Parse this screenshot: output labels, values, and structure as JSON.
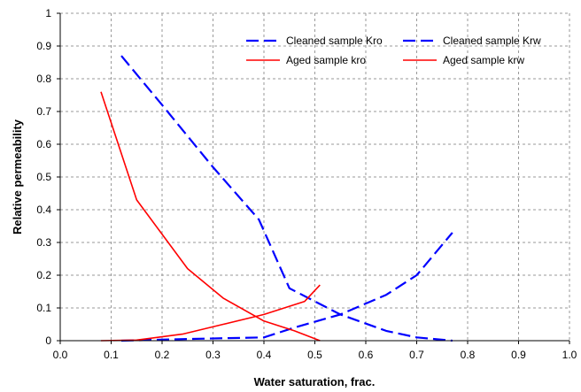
{
  "chart_data": {
    "type": "line",
    "xlabel": "Water saturation, frac.",
    "ylabel": "Relative permeability",
    "xlim": [
      0.0,
      1.0
    ],
    "ylim": [
      0,
      1
    ],
    "x_ticks": [
      "0.0",
      "0.1",
      "0.2",
      "0.3",
      "0.4",
      "0.5",
      "0.6",
      "0.7",
      "0.8",
      "0.9",
      "1.0"
    ],
    "y_ticks": [
      "0",
      "0.1",
      "0.2",
      "0.3",
      "0.4",
      "0.5",
      "0.6",
      "0.7",
      "0.8",
      "0.9",
      "1"
    ],
    "grid": true,
    "legend_position": "top-right",
    "series": [
      {
        "name": "Cleaned sample Kro",
        "color": "#0000ff",
        "dash": true,
        "x": [
          0.12,
          0.2,
          0.3,
          0.39,
          0.45,
          0.55,
          0.64,
          0.7,
          0.77
        ],
        "y": [
          0.87,
          0.72,
          0.53,
          0.37,
          0.16,
          0.08,
          0.03,
          0.01,
          0.0
        ]
      },
      {
        "name": "Cleaned sample Krw",
        "color": "#0000ff",
        "dash": true,
        "x": [
          0.12,
          0.25,
          0.4,
          0.46,
          0.55,
          0.64,
          0.7,
          0.77
        ],
        "y": [
          0.0,
          0.005,
          0.01,
          0.04,
          0.08,
          0.14,
          0.2,
          0.33
        ]
      },
      {
        "name": "Aged sample kro",
        "color": "#ff0000",
        "dash": false,
        "x": [
          0.08,
          0.15,
          0.25,
          0.32,
          0.4,
          0.46,
          0.51
        ],
        "y": [
          0.76,
          0.43,
          0.22,
          0.13,
          0.06,
          0.03,
          0.0
        ]
      },
      {
        "name": "Aged sample krw",
        "color": "#ff0000",
        "dash": false,
        "x": [
          0.08,
          0.15,
          0.24,
          0.32,
          0.4,
          0.48,
          0.51
        ],
        "y": [
          0.0,
          0.002,
          0.02,
          0.05,
          0.08,
          0.12,
          0.17
        ]
      }
    ]
  }
}
